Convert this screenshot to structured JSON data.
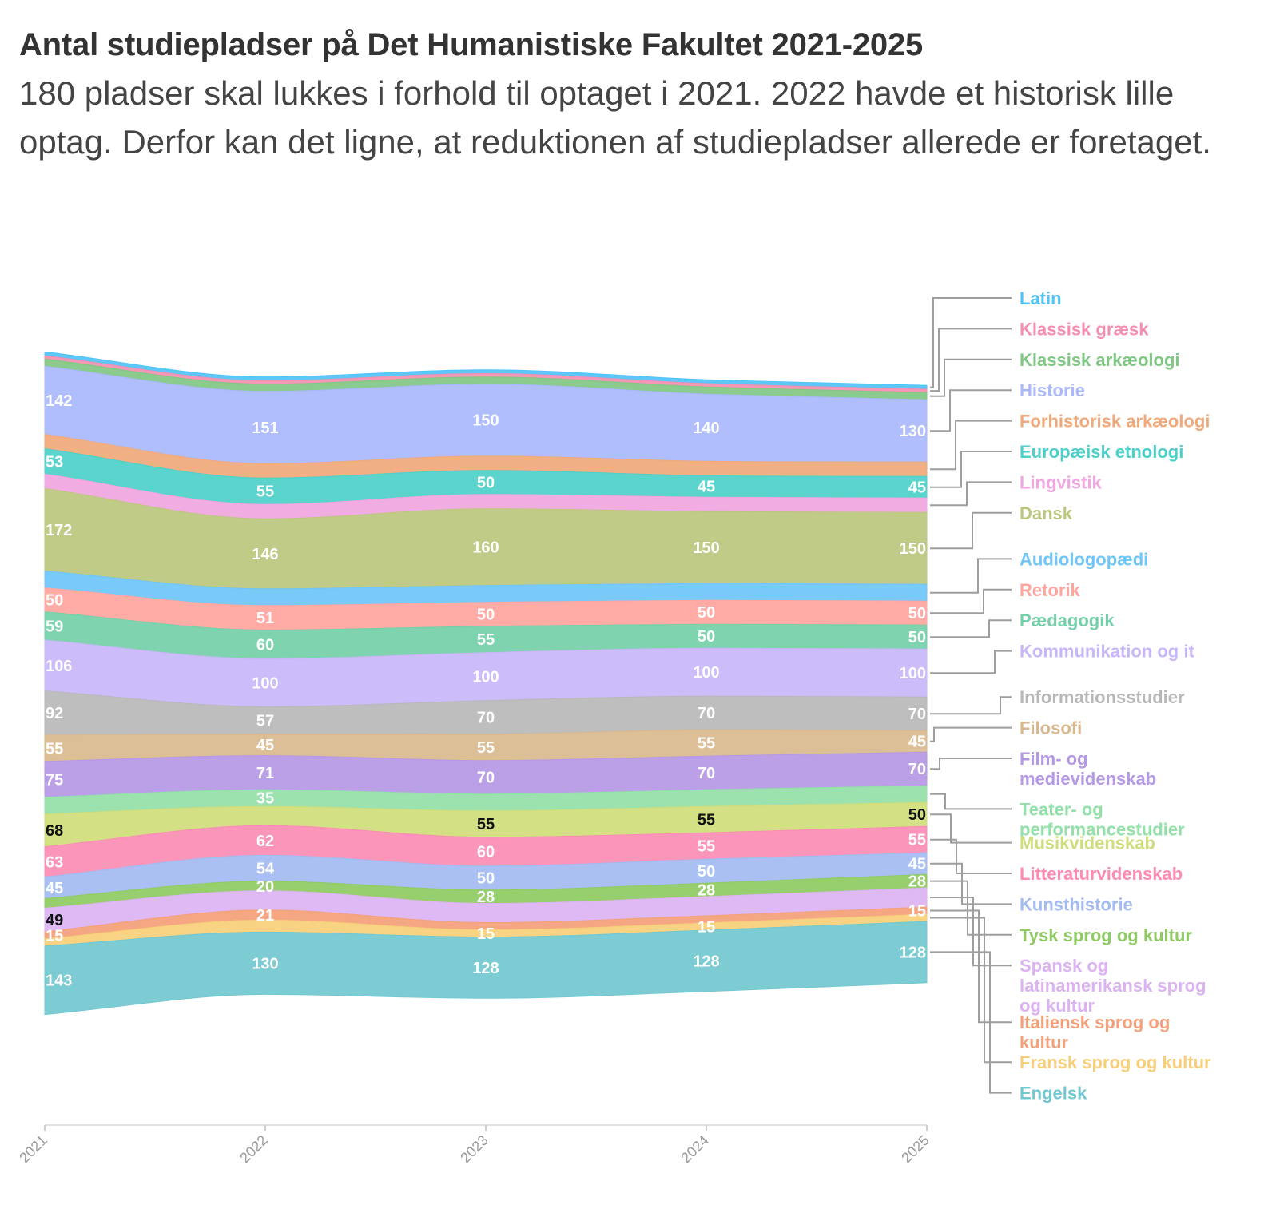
{
  "title": "Antal studiepladser på Det Humanistiske Fakultet 2021-2025",
  "subtitle": "180 pladser skal lukkes i forhold til optaget i 2021. 2022 havde et historisk lille optag. Derfor kan det ligne, at reduktionen af studiepladser allerede er foretaget.",
  "chart_data": {
    "type": "area",
    "stacked": true,
    "x": [
      "2021",
      "2022",
      "2023",
      "2024",
      "2025"
    ],
    "series": [
      {
        "name": "Latin",
        "color": "#4fc3f7",
        "values": [
          8,
          8,
          8,
          8,
          8
        ],
        "labels": [
          "",
          "",
          "",
          "",
          ""
        ]
      },
      {
        "name": "Klassisk græsk",
        "color": "#f48fb1",
        "values": [
          7,
          7,
          7,
          7,
          7
        ],
        "labels": [
          "",
          "",
          "",
          "",
          ""
        ]
      },
      {
        "name": "Klassisk arkæologi",
        "color": "#81c784",
        "values": [
          15,
          15,
          15,
          15,
          15
        ],
        "labels": [
          "",
          "",
          "",
          "",
          ""
        ]
      },
      {
        "name": "Historie",
        "color": "#aab8fd",
        "values": [
          142,
          151,
          150,
          140,
          130
        ],
        "labels": [
          "142",
          "151",
          "150",
          "140",
          "130"
        ]
      },
      {
        "name": "Forhistorisk arkæologi",
        "color": "#f0a97a",
        "values": [
          30,
          30,
          30,
          30,
          30
        ],
        "labels": [
          "",
          "",
          "",
          "",
          ""
        ]
      },
      {
        "name": "Europæisk etnologi",
        "color": "#4dd0c9",
        "values": [
          53,
          55,
          50,
          45,
          45
        ],
        "labels": [
          "53",
          "55",
          "50",
          "45",
          "45"
        ]
      },
      {
        "name": "Lingvistik",
        "color": "#f0a6e0",
        "values": [
          30,
          30,
          30,
          30,
          30
        ],
        "labels": [
          "",
          "",
          "",
          "",
          ""
        ]
      },
      {
        "name": "Dansk",
        "color": "#bcc77e",
        "values": [
          172,
          146,
          160,
          150,
          150
        ],
        "labels": [
          "172",
          "146",
          "160",
          "150",
          "150"
        ]
      },
      {
        "name": "Audiologopædi",
        "color": "#6ec6f9",
        "values": [
          35,
          35,
          35,
          35,
          35
        ],
        "labels": [
          "",
          "",
          "",
          "",
          ""
        ]
      },
      {
        "name": "Retorik",
        "color": "#ffa5a0",
        "values": [
          50,
          51,
          50,
          50,
          50
        ],
        "labels": [
          "50",
          "51",
          "50",
          "50",
          "50"
        ]
      },
      {
        "name": "Pædagogik",
        "color": "#74d0a8",
        "values": [
          59,
          60,
          55,
          50,
          50
        ],
        "labels": [
          "59",
          "60",
          "55",
          "50",
          "50"
        ]
      },
      {
        "name": "Kommunikation og it",
        "color": "#c9b6fa",
        "values": [
          106,
          100,
          100,
          100,
          100
        ],
        "labels": [
          "106",
          "100",
          "100",
          "100",
          "100"
        ]
      },
      {
        "name": "Informationsstudier",
        "color": "#b8b8b8",
        "values": [
          92,
          57,
          70,
          70,
          70
        ],
        "labels": [
          "92",
          "57",
          "70",
          "70",
          "70"
        ]
      },
      {
        "name": "Filosofi",
        "color": "#d9b88e",
        "values": [
          55,
          45,
          55,
          55,
          45
        ],
        "labels": [
          "55",
          "45",
          "55",
          "55",
          "45"
        ]
      },
      {
        "name": "Film- og medievidenskab",
        "color": "#b598e6",
        "values": [
          75,
          71,
          70,
          70,
          70
        ],
        "labels": [
          "75",
          "71",
          "70",
          "70",
          "70"
        ]
      },
      {
        "name": "Teater- og performancestudier",
        "color": "#93e0a8",
        "values": [
          35,
          35,
          35,
          35,
          35
        ],
        "labels": [
          "",
          "35",
          "",
          "",
          ""
        ]
      },
      {
        "name": "Musikvidenskab",
        "color": "#cfdd7a",
        "values": [
          68,
          40,
          55,
          55,
          50
        ],
        "labels": [
          "68",
          "",
          "55",
          "55",
          "50"
        ]
      },
      {
        "name": "Litteraturvidenskab",
        "color": "#fb8cb4",
        "values": [
          63,
          62,
          60,
          55,
          55
        ],
        "labels": [
          "63",
          "62",
          "60",
          "55",
          "55"
        ]
      },
      {
        "name": "Kunsthistorie",
        "color": "#a3bbf1",
        "values": [
          45,
          54,
          50,
          50,
          45
        ],
        "labels": [
          "45",
          "54",
          "50",
          "50",
          "45"
        ]
      },
      {
        "name": "Tysk sprog og kultur",
        "color": "#8fcb62",
        "values": [
          20,
          20,
          28,
          28,
          28
        ],
        "labels": [
          "",
          "20",
          "28",
          "28",
          "28"
        ]
      },
      {
        "name": "Spansk og latinamerikansk sprog og kultur",
        "color": "#dcb3f2",
        "values": [
          49,
          40,
          40,
          40,
          40
        ],
        "labels": [
          "49",
          "",
          "",
          "",
          ""
        ]
      },
      {
        "name": "Italiensk sprog og kultur",
        "color": "#f4a07a",
        "values": [
          15,
          21,
          15,
          15,
          15
        ],
        "labels": [
          "15",
          "21",
          "",
          "",
          "15"
        ]
      },
      {
        "name": "Fransk sprog og kultur",
        "color": "#f7cf7a",
        "values": [
          15,
          25,
          15,
          15,
          15
        ],
        "labels": [
          "",
          "",
          "15",
          "15",
          ""
        ]
      },
      {
        "name": "Engelsk",
        "color": "#72c8d0",
        "values": [
          143,
          130,
          128,
          128,
          128
        ],
        "labels": [
          "143",
          "130",
          "128",
          "128",
          "128"
        ]
      }
    ]
  }
}
